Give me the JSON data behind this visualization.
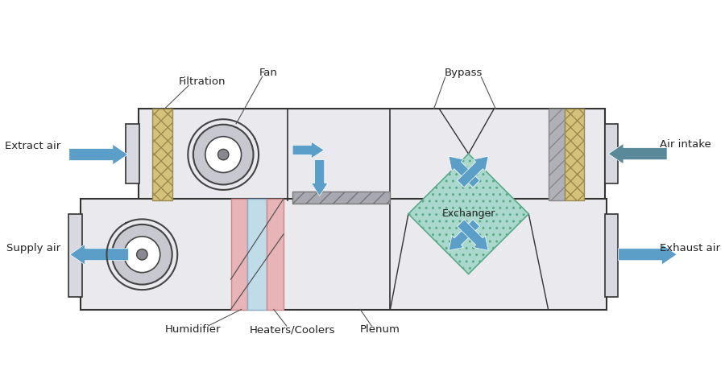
{
  "bg_color": "#ffffff",
  "unit_fill": "#eaeaee",
  "filter_color": "#d4c17a",
  "hatch_gray_fill": "#c0c0c8",
  "pink_color": "#e8b4b8",
  "blue_light_color": "#c0dce8",
  "exchanger_fill": "#aad8cc",
  "arrow_color": "#5b9fc8",
  "arrow_intake_color": "#5a8a9a",
  "label_color": "#222222",
  "line_color": "#555555",
  "labels": {
    "filtration": "Filtration",
    "fan": "Fan",
    "bypass": "Bypass",
    "humidifier": "Humidifier",
    "heaters": "Heaters/Coolers",
    "plenum": "Plenum",
    "exchanger": "Exchanger",
    "extract": "Extract air",
    "supply": "Supply air",
    "intake": "Air intake",
    "exhaust": "Exhaust air"
  }
}
